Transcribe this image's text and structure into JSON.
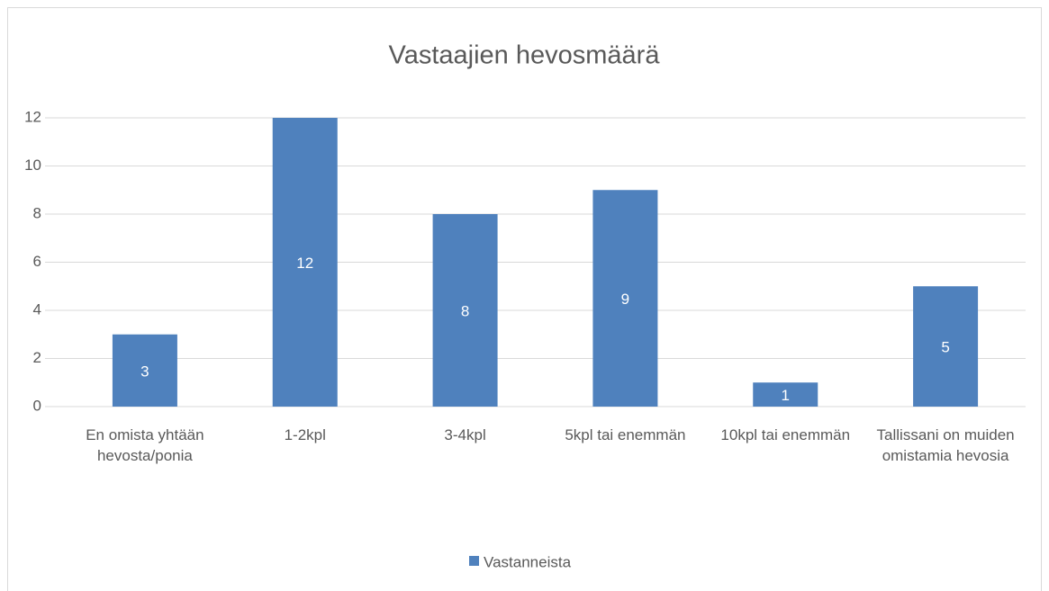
{
  "chart_data": {
    "type": "bar",
    "title": "Vastaajien hevosmäärä",
    "categories": [
      "En omista yhtään hevosta/ponia",
      "1-2kpl",
      "3-4kpl",
      "5kpl tai enemmän",
      "10kpl tai enemmän",
      "Tallissani on muiden omistamia hevosia"
    ],
    "series": [
      {
        "name": "Vastanneista",
        "color": "#4f81bd",
        "values": [
          3,
          12,
          8,
          9,
          1,
          5
        ]
      }
    ],
    "ylim": [
      0,
      12
    ],
    "yticks": [
      0,
      2,
      4,
      6,
      8,
      10,
      12
    ],
    "grid": true,
    "legend": "bottom"
  }
}
